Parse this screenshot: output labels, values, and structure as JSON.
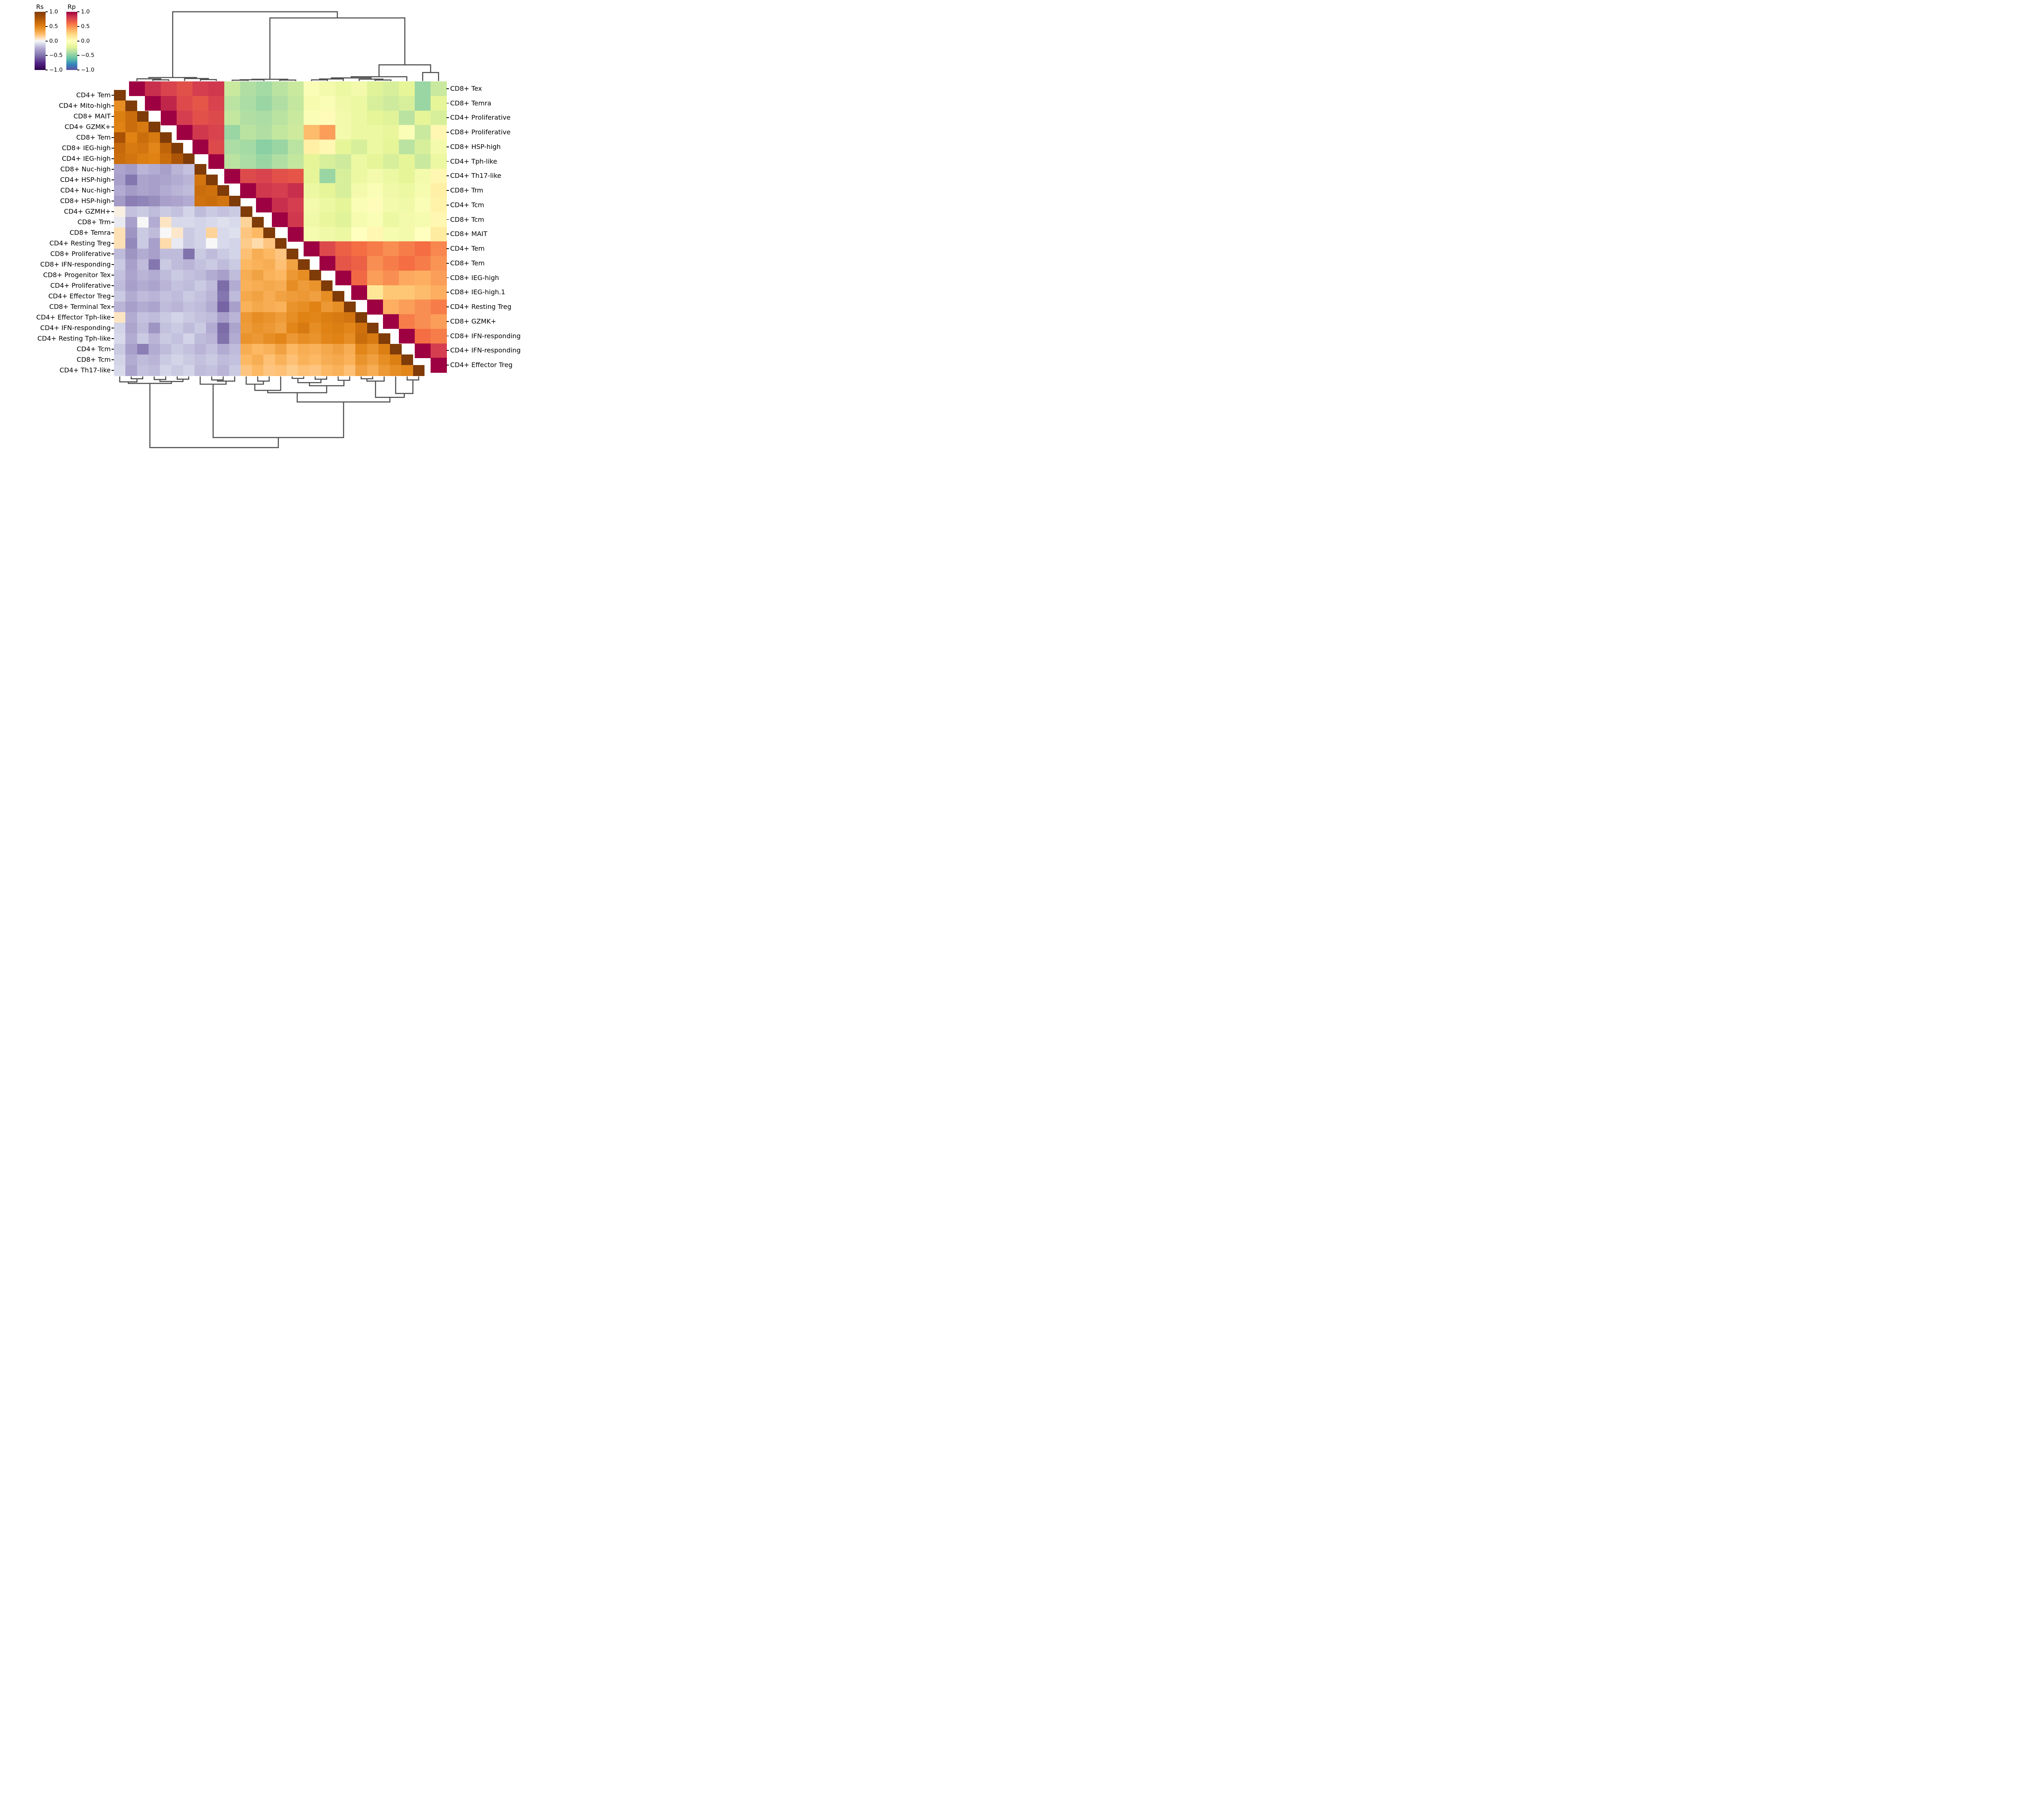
{
  "figure": {
    "background": "#ffffff",
    "dendrogram_color": "#4d4d4d",
    "tick_color": "#000000"
  },
  "colorbars": {
    "rs": {
      "title": "Rs",
      "tick_labels": [
        "1.0",
        "0.5",
        "0.0",
        "−0.5",
        "−1.0"
      ],
      "tick_values": [
        1.0,
        0.5,
        0.0,
        -0.5,
        -1.0
      ],
      "colormap": "puor_r"
    },
    "rp": {
      "title": "Rp",
      "tick_labels": [
        "1.0",
        "0.5",
        "0.0",
        "−0.5",
        "−1.0"
      ],
      "tick_values": [
        1.0,
        0.5,
        0.0,
        -0.5,
        -1.0
      ],
      "colormap": "spectral_r"
    }
  },
  "colormaps": {
    "puor_r": [
      [
        -1,
        "#2d004b"
      ],
      [
        -0.75,
        "#542788"
      ],
      [
        -0.5,
        "#8073ac"
      ],
      [
        -0.25,
        "#b2abd2"
      ],
      [
        -0.1,
        "#d8daeb"
      ],
      [
        0,
        "#f7f7f7"
      ],
      [
        0.1,
        "#fee0b6"
      ],
      [
        0.25,
        "#fdb863"
      ],
      [
        0.5,
        "#e08214"
      ],
      [
        0.75,
        "#b35806"
      ],
      [
        1,
        "#7f3b08"
      ]
    ],
    "spectral_r": [
      [
        -1,
        "#5e4fa2"
      ],
      [
        -0.8,
        "#3288bd"
      ],
      [
        -0.6,
        "#66c2a5"
      ],
      [
        -0.4,
        "#abdda4"
      ],
      [
        -0.2,
        "#e6f598"
      ],
      [
        0,
        "#ffffbf"
      ],
      [
        0.2,
        "#fee08b"
      ],
      [
        0.4,
        "#fdae61"
      ],
      [
        0.6,
        "#f46d43"
      ],
      [
        0.8,
        "#d53e4f"
      ],
      [
        1,
        "#9e0142"
      ]
    ]
  },
  "chart_data": {
    "type": "heatmap",
    "subtype": "clustermap-dual-triangle",
    "value_domain": [
      -1,
      1
    ],
    "lower_triangle": {
      "name": "Rs",
      "colormap": "puor_r",
      "labels": [
        "CD4+ Tem",
        "CD4+ Mito-high",
        "CD8+ MAIT",
        "CD4+ GZMK+",
        "CD8+ Tem",
        "CD8+ IEG-high",
        "CD4+ IEG-high",
        "CD8+ Nuc-high",
        "CD4+ HSP-high",
        "CD4+ Nuc-high",
        "CD8+ HSP-high",
        "CD4+ GZMH+",
        "CD8+ Trm",
        "CD8+ Temra",
        "CD4+ Resting Treg",
        "CD8+ Proliferative",
        "CD8+ IFN-responding",
        "CD8+ Progenitor Tex",
        "CD4+ Proliferative",
        "CD4+ Effector Treg",
        "CD8+ Terminal Tex",
        "CD4+ Effector Tph-like",
        "CD4+ IFN-responding",
        "CD4+ Resting Tph-like",
        "CD4+ Tcm",
        "CD8+ Tcm",
        "CD4+ Th17-like"
      ],
      "rows": [
        [
          1
        ],
        [
          0.45,
          1
        ],
        [
          0.52,
          0.62,
          1
        ],
        [
          0.5,
          0.62,
          0.55,
          1
        ],
        [
          0.8,
          0.5,
          0.62,
          0.55,
          1
        ],
        [
          0.65,
          0.55,
          0.58,
          0.48,
          0.68,
          1
        ],
        [
          0.62,
          0.58,
          0.52,
          0.5,
          0.62,
          0.78,
          1
        ],
        [
          -0.28,
          -0.32,
          -0.22,
          -0.25,
          -0.3,
          -0.22,
          -0.18,
          1
        ],
        [
          -0.3,
          -0.48,
          -0.28,
          -0.3,
          -0.28,
          -0.25,
          -0.22,
          0.58,
          1
        ],
        [
          -0.25,
          -0.32,
          -0.28,
          -0.3,
          -0.25,
          -0.22,
          -0.2,
          0.62,
          0.6,
          1
        ],
        [
          -0.32,
          -0.45,
          -0.42,
          -0.38,
          -0.3,
          -0.28,
          -0.25,
          0.6,
          0.62,
          0.58,
          1
        ],
        [
          0.03,
          -0.18,
          -0.15,
          -0.2,
          -0.15,
          -0.18,
          -0.12,
          -0.2,
          -0.15,
          -0.18,
          -0.15,
          1
        ],
        [
          -0.05,
          -0.3,
          0.0,
          -0.25,
          0.08,
          -0.1,
          -0.1,
          -0.12,
          -0.1,
          -0.08,
          -0.1,
          0.15,
          1
        ],
        [
          0.1,
          -0.35,
          -0.15,
          -0.2,
          0.0,
          0.07,
          -0.15,
          -0.12,
          0.15,
          -0.1,
          -0.08,
          0.2,
          0.25,
          1
        ],
        [
          0.1,
          -0.4,
          -0.15,
          -0.3,
          0.12,
          -0.05,
          -0.15,
          -0.12,
          0.0,
          -0.1,
          -0.12,
          0.18,
          0.12,
          0.2,
          1
        ],
        [
          -0.2,
          -0.35,
          -0.25,
          -0.3,
          -0.2,
          -0.2,
          -0.5,
          -0.15,
          -0.2,
          -0.15,
          -0.12,
          0.22,
          0.3,
          0.25,
          0.2,
          1
        ],
        [
          -0.15,
          -0.3,
          -0.2,
          -0.48,
          -0.15,
          -0.2,
          -0.22,
          -0.18,
          -0.15,
          -0.2,
          -0.15,
          0.25,
          0.28,
          0.3,
          0.22,
          0.35,
          1
        ],
        [
          -0.18,
          -0.28,
          -0.22,
          -0.25,
          -0.2,
          -0.15,
          -0.18,
          -0.2,
          -0.25,
          -0.3,
          -0.2,
          0.3,
          0.35,
          0.28,
          0.25,
          0.4,
          0.45,
          1
        ],
        [
          -0.2,
          -0.3,
          -0.25,
          -0.28,
          -0.22,
          -0.18,
          -0.2,
          -0.15,
          -0.2,
          -0.52,
          -0.25,
          0.28,
          0.3,
          0.32,
          0.3,
          0.45,
          0.38,
          0.42,
          1
        ],
        [
          -0.15,
          -0.25,
          -0.2,
          -0.22,
          -0.18,
          -0.2,
          -0.15,
          -0.18,
          -0.22,
          -0.48,
          -0.2,
          0.32,
          0.35,
          0.3,
          0.35,
          0.38,
          0.4,
          0.36,
          0.45,
          1
        ],
        [
          -0.22,
          -0.3,
          -0.25,
          -0.28,
          -0.2,
          -0.22,
          -0.18,
          -0.2,
          -0.25,
          -0.55,
          -0.3,
          0.28,
          0.32,
          0.3,
          0.28,
          0.42,
          0.45,
          0.5,
          0.4,
          0.44,
          1
        ],
        [
          0.08,
          -0.25,
          -0.18,
          -0.2,
          -0.15,
          -0.12,
          -0.15,
          -0.18,
          -0.2,
          -0.3,
          -0.22,
          0.4,
          0.45,
          0.42,
          0.38,
          0.45,
          0.5,
          0.48,
          0.52,
          0.55,
          0.58,
          1
        ],
        [
          -0.12,
          -0.28,
          -0.2,
          -0.35,
          -0.18,
          -0.15,
          -0.2,
          -0.15,
          -0.25,
          -0.52,
          -0.28,
          0.38,
          0.42,
          0.4,
          0.35,
          0.48,
          0.55,
          0.45,
          0.5,
          0.52,
          0.48,
          0.6,
          1
        ],
        [
          -0.1,
          -0.25,
          -0.15,
          -0.22,
          -0.15,
          -0.18,
          -0.12,
          -0.2,
          -0.22,
          -0.5,
          -0.25,
          0.42,
          0.4,
          0.45,
          0.48,
          0.4,
          0.45,
          0.42,
          0.48,
          0.5,
          0.45,
          0.62,
          0.55,
          1
        ],
        [
          -0.15,
          -0.3,
          -0.45,
          -0.25,
          -0.2,
          -0.15,
          -0.18,
          -0.22,
          -0.18,
          -0.25,
          -0.2,
          0.3,
          0.25,
          0.28,
          0.35,
          0.25,
          0.3,
          0.28,
          0.32,
          0.36,
          0.3,
          0.48,
          0.42,
          0.52,
          1
        ],
        [
          -0.12,
          -0.25,
          -0.2,
          -0.22,
          -0.15,
          -0.12,
          -0.15,
          -0.18,
          -0.15,
          -0.2,
          -0.18,
          0.25,
          0.3,
          0.22,
          0.28,
          0.22,
          0.28,
          0.25,
          0.3,
          0.32,
          0.28,
          0.42,
          0.36,
          0.45,
          0.52,
          1
        ],
        [
          -0.1,
          -0.28,
          -0.18,
          -0.2,
          -0.12,
          -0.15,
          -0.12,
          -0.2,
          -0.18,
          -0.22,
          -0.15,
          0.2,
          0.25,
          0.2,
          0.22,
          0.18,
          0.22,
          0.2,
          0.25,
          0.28,
          0.22,
          0.36,
          0.3,
          0.4,
          0.45,
          0.48,
          1
        ]
      ]
    },
    "upper_triangle": {
      "name": "Rp",
      "colormap": "spectral_r",
      "labels": [
        "CD8+ Tex",
        "CD8+ Temra",
        "CD4+ Proliferative",
        "CD8+ Proliferative",
        "CD8+ HSP-high",
        "CD4+ Tph-like",
        "CD4+ Th17-like",
        "CD8+ Trm",
        "CD4+ Tcm",
        "CD8+ Tcm",
        "CD8+ MAIT",
        "CD4+ Tem",
        "CD8+ Tem",
        "CD8+ IEG-high",
        "CD8+ IEG-high.1",
        "CD4+ Resting Treg",
        "CD8+ GZMK+",
        "CD8+ IFN-responding",
        "CD4+ IFN-responding",
        "CD4+ Effector Treg"
      ],
      "rows": [
        [
          1,
          0.85,
          0.78,
          0.72,
          0.8,
          0.82,
          -0.3,
          -0.38,
          -0.42,
          -0.35,
          -0.3,
          -0.05,
          -0.1,
          -0.15,
          -0.1,
          -0.22,
          -0.25,
          -0.2,
          -0.45,
          -0.3
        ],
        [
          1,
          0.88,
          0.75,
          0.7,
          0.78,
          -0.35,
          -0.4,
          -0.45,
          -0.38,
          -0.32,
          -0.08,
          -0.05,
          -0.12,
          -0.15,
          -0.25,
          -0.28,
          -0.25,
          -0.45,
          -0.2
        ],
        [
          1,
          0.8,
          0.72,
          0.75,
          -0.32,
          -0.38,
          -0.4,
          -0.35,
          -0.3,
          -0.05,
          0.02,
          -0.1,
          -0.15,
          -0.2,
          -0.22,
          -0.35,
          -0.2,
          -0.25
        ],
        [
          1,
          0.82,
          0.78,
          -0.45,
          -0.35,
          -0.38,
          -0.32,
          -0.28,
          0.35,
          0.45,
          -0.1,
          -0.15,
          -0.15,
          -0.18,
          -0.05,
          -0.3,
          0.05
        ],
        [
          1,
          0.75,
          -0.4,
          -0.42,
          -0.5,
          -0.45,
          -0.35,
          0.1,
          0.05,
          -0.2,
          -0.25,
          -0.15,
          -0.2,
          -0.35,
          -0.25,
          -0.1
        ],
        [
          1,
          -0.35,
          -0.4,
          -0.45,
          -0.38,
          -0.32,
          -0.2,
          -0.25,
          -0.28,
          -0.15,
          -0.2,
          -0.25,
          -0.2,
          -0.3,
          -0.15
        ],
        [
          1,
          0.75,
          0.78,
          0.72,
          0.7,
          -0.2,
          -0.45,
          -0.25,
          -0.15,
          -0.1,
          -0.15,
          -0.2,
          -0.1,
          0.05
        ],
        [
          1,
          0.82,
          0.8,
          0.85,
          -0.15,
          -0.2,
          -0.25,
          -0.1,
          -0.05,
          -0.12,
          -0.15,
          -0.08,
          0.1
        ],
        [
          1,
          0.85,
          0.8,
          -0.1,
          -0.15,
          -0.2,
          -0.05,
          0.02,
          -0.1,
          -0.12,
          -0.05,
          0.08
        ],
        [
          1,
          0.82,
          -0.12,
          -0.18,
          -0.22,
          -0.08,
          -0.05,
          -0.15,
          -0.1,
          -0.08,
          0.05
        ],
        [
          1,
          -0.08,
          -0.12,
          -0.15,
          0.0,
          0.05,
          -0.08,
          -0.1,
          0.0,
          0.12
        ],
        [
          1,
          0.75,
          0.65,
          0.6,
          0.55,
          0.5,
          0.55,
          0.6,
          0.52
        ],
        [
          1,
          0.7,
          0.65,
          0.5,
          0.55,
          0.6,
          0.55,
          0.48
        ],
        [
          1,
          0.62,
          0.45,
          0.5,
          0.42,
          0.4,
          0.45
        ],
        [
          1,
          0.15,
          0.3,
          0.3,
          0.35,
          0.4
        ],
        [
          1,
          0.4,
          0.45,
          0.5,
          0.55
        ],
        [
          1,
          0.55,
          0.5,
          0.45
        ],
        [
          1,
          0.6,
          0.55
        ],
        [
          1,
          0.8
        ],
        [
          1
        ]
      ]
    },
    "dendrograms": {
      "top": {
        "n_leaves": 20,
        "orientation": "top",
        "merges": [
          [
            1,
            2,
            0.015
          ],
          [
            0,
            20,
            0.028
          ],
          [
            4,
            5,
            0.018
          ],
          [
            3,
            22,
            0.032
          ],
          [
            21,
            23,
            0.045
          ],
          [
            6,
            7,
            0.01
          ],
          [
            25,
            8,
            0.016
          ],
          [
            9,
            10,
            0.012
          ],
          [
            26,
            27,
            0.022
          ],
          [
            11,
            12,
            0.015
          ],
          [
            29,
            13,
            0.026
          ],
          [
            15,
            16,
            0.013
          ],
          [
            14,
            31,
            0.024
          ],
          [
            30,
            32,
            0.04
          ],
          [
            33,
            17,
            0.055
          ],
          [
            18,
            19,
            0.11
          ],
          [
            34,
            35,
            0.21
          ],
          [
            28,
            36,
            0.82
          ],
          [
            24,
            37,
            0.9
          ]
        ]
      },
      "bottom": {
        "n_leaves": 27,
        "orientation": "bottom",
        "merges": [
          [
            1,
            2,
            0.03
          ],
          [
            0,
            27,
            0.07
          ],
          [
            3,
            4,
            0.04
          ],
          [
            5,
            6,
            0.035
          ],
          [
            29,
            30,
            0.065
          ],
          [
            28,
            31,
            0.09
          ],
          [
            8,
            9,
            0.045
          ],
          [
            33,
            10,
            0.06
          ],
          [
            7,
            34,
            0.1
          ],
          [
            12,
            13,
            0.06
          ],
          [
            11,
            36,
            0.1
          ],
          [
            37,
            14,
            0.18
          ],
          [
            15,
            16,
            0.025
          ],
          [
            17,
            18,
            0.035
          ],
          [
            39,
            40,
            0.08
          ],
          [
            19,
            20,
            0.05
          ],
          [
            41,
            42,
            0.12
          ],
          [
            38,
            43,
            0.21
          ],
          [
            21,
            22,
            0.03
          ],
          [
            45,
            23,
            0.06
          ],
          [
            25,
            26,
            0.045
          ],
          [
            24,
            47,
            0.22
          ],
          [
            46,
            48,
            0.27
          ],
          [
            44,
            49,
            0.33
          ],
          [
            35,
            50,
            0.79
          ],
          [
            32,
            51,
            0.92
          ]
        ]
      }
    }
  }
}
